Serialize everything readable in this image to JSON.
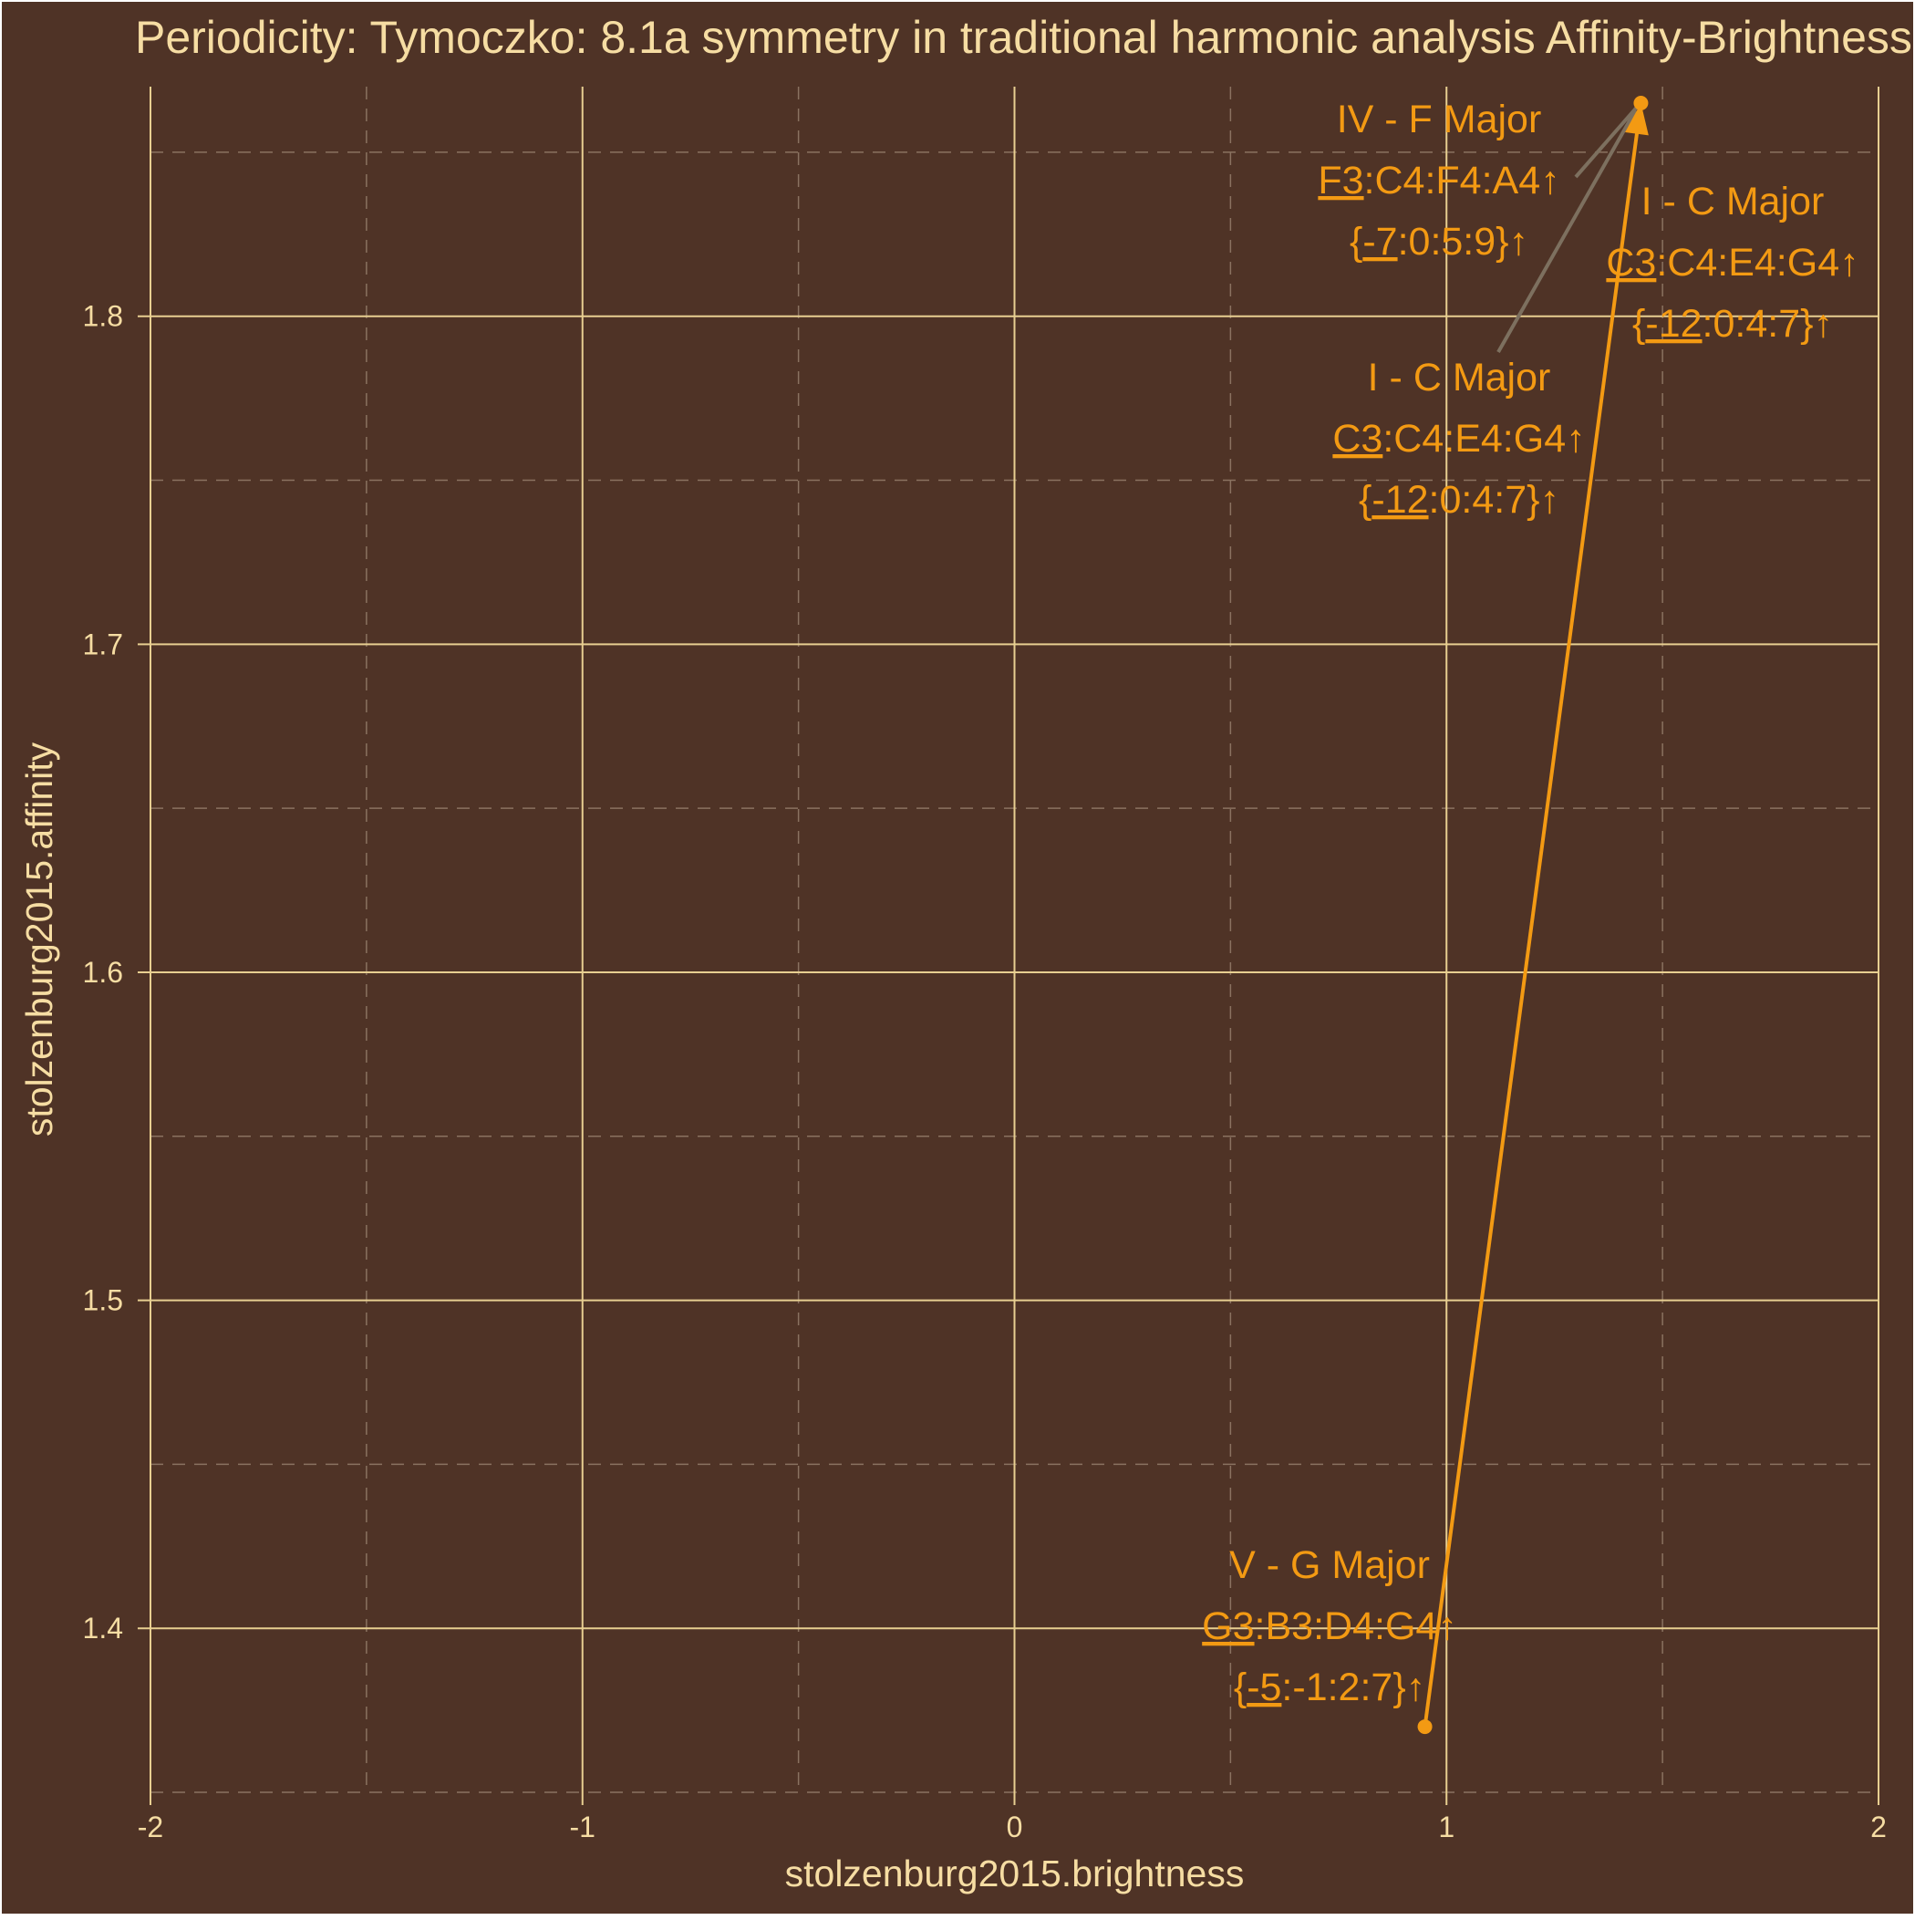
{
  "chart_data": {
    "type": "scatter",
    "title": "Periodicity: Tymoczko: 8.1a symmetry in traditional harmonic analysis Affinity-Brightness",
    "xlabel": "stolzenburg2015.brightness",
    "ylabel": "stolzenburg2015.affinity",
    "xlim": [
      -2,
      2
    ],
    "ylim": [
      1.35,
      1.87
    ],
    "x_ticks": [
      -2,
      -1,
      0,
      1,
      2
    ],
    "x_tick_labels": [
      "-2",
      "-1",
      "0",
      "1",
      "2"
    ],
    "y_ticks": [
      1.4,
      1.5,
      1.6,
      1.7,
      1.8
    ],
    "y_tick_labels": [
      "1.4",
      "1.5",
      "1.6",
      "1.7",
      "1.8"
    ],
    "grid": true,
    "points": [
      {
        "roman": "I",
        "key": "C Major",
        "label": "I  - C Major",
        "chord": "C3:C4:E4:G4",
        "intervals": "{-12:0:4:7}",
        "x": 1.45,
        "y": 1.865,
        "bass": "C3",
        "bass_int": "-12"
      },
      {
        "roman": "IV",
        "key": "F Major",
        "label": "IV - F Major",
        "chord": "F3:C4:F4:A4",
        "intervals": "{-7:0:5:9}",
        "x": 1.45,
        "y": 1.865,
        "bass": "F3",
        "bass_int": "-7"
      },
      {
        "roman": "V",
        "key": "G Major",
        "label": "V  - G Major",
        "chord": "G3:B3:D4:G4",
        "intervals": "{-5:-1:2:7}",
        "x": 0.95,
        "y": 1.37,
        "bass": "G3",
        "bass_int": "-5"
      },
      {
        "roman": "I",
        "key": "C Major",
        "label": "I  - C Major",
        "chord": "C3:C4:E4:G4",
        "intervals": "{-12:0:4:7}",
        "x": 1.45,
        "y": 1.865,
        "bass": "C3",
        "bass_int": "-12"
      }
    ],
    "path": [
      [
        0.95,
        1.37
      ],
      [
        1.45,
        1.865
      ]
    ],
    "arrow_symbol": "↑",
    "colors": {
      "background": "#4f3326",
      "grid_major": "#e8cf91",
      "grid_minor": "#8a7260",
      "text": "#f6dda3",
      "accent": "#f39a13",
      "leader": "#7d705f"
    }
  }
}
